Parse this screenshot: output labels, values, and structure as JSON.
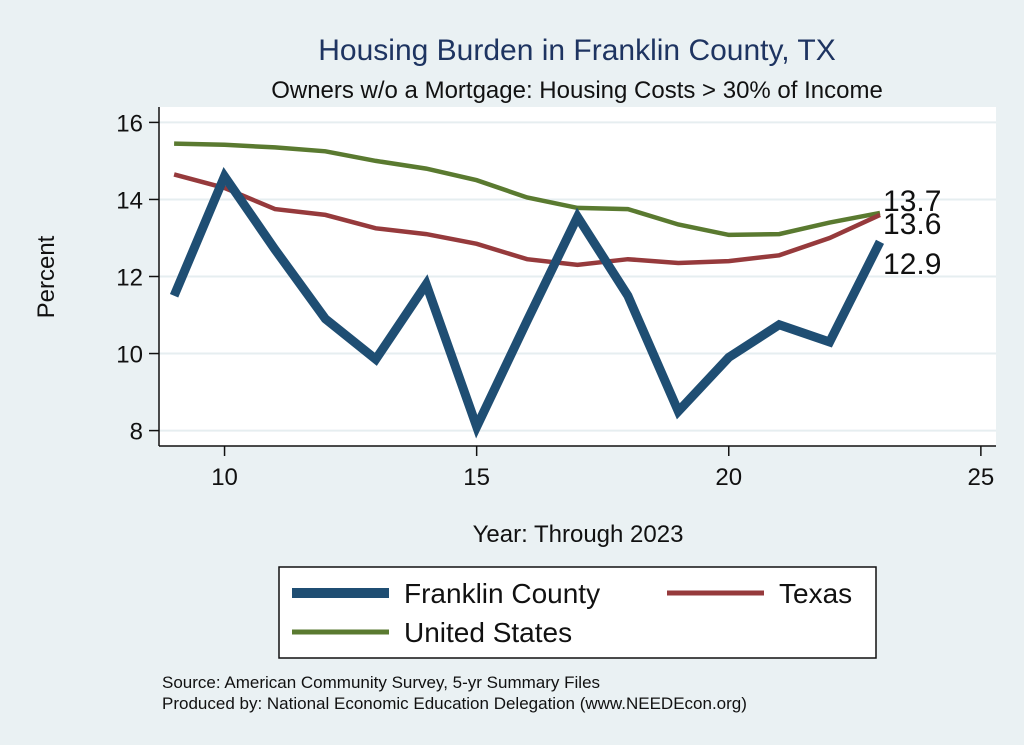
{
  "chart_data": {
    "type": "line",
    "title": "Housing Burden in Franklin County, TX",
    "subtitle": "Owners w/o a Mortgage: Housing Costs > 30% of Income",
    "xlabel": "Year: Through 2023",
    "ylabel": "Percent",
    "xlim": [
      8.7,
      25.3
    ],
    "ylim": [
      7.6,
      16.4
    ],
    "xticks": [
      10,
      15,
      20,
      25
    ],
    "yticks": [
      8,
      10,
      12,
      14,
      16
    ],
    "x": [
      9,
      10,
      11,
      12,
      13,
      14,
      15,
      16,
      17,
      18,
      19,
      20,
      21,
      22,
      23
    ],
    "series": [
      {
        "name": "Franklin County",
        "color": "#1f4e73",
        "values": [
          11.5,
          14.6,
          12.7,
          10.9,
          9.85,
          11.8,
          8.1,
          10.85,
          13.55,
          11.5,
          8.5,
          9.9,
          10.75,
          10.3,
          12.9
        ],
        "end_label": "12.9"
      },
      {
        "name": "Texas",
        "color": "#963a3c",
        "values": [
          14.65,
          14.3,
          13.75,
          13.6,
          13.25,
          13.1,
          12.85,
          12.45,
          12.3,
          12.45,
          12.35,
          12.4,
          12.55,
          13.0,
          13.6
        ],
        "end_label": "13.6"
      },
      {
        "name": "United States",
        "color": "#5a7a30",
        "values": [
          15.45,
          15.42,
          15.35,
          15.25,
          15.0,
          14.8,
          14.5,
          14.05,
          13.78,
          13.75,
          13.35,
          13.08,
          13.1,
          13.4,
          13.65
        ],
        "end_label": "13.7"
      }
    ],
    "legend": {
      "position": "bottom",
      "items": [
        "Franklin County",
        "Texas",
        "United States"
      ]
    }
  },
  "footer": {
    "source": "Source: American Community Survey, 5-yr Summary Files",
    "producer": "Produced by: National Economic Education Delegation (www.NEEDEcon.org)"
  }
}
